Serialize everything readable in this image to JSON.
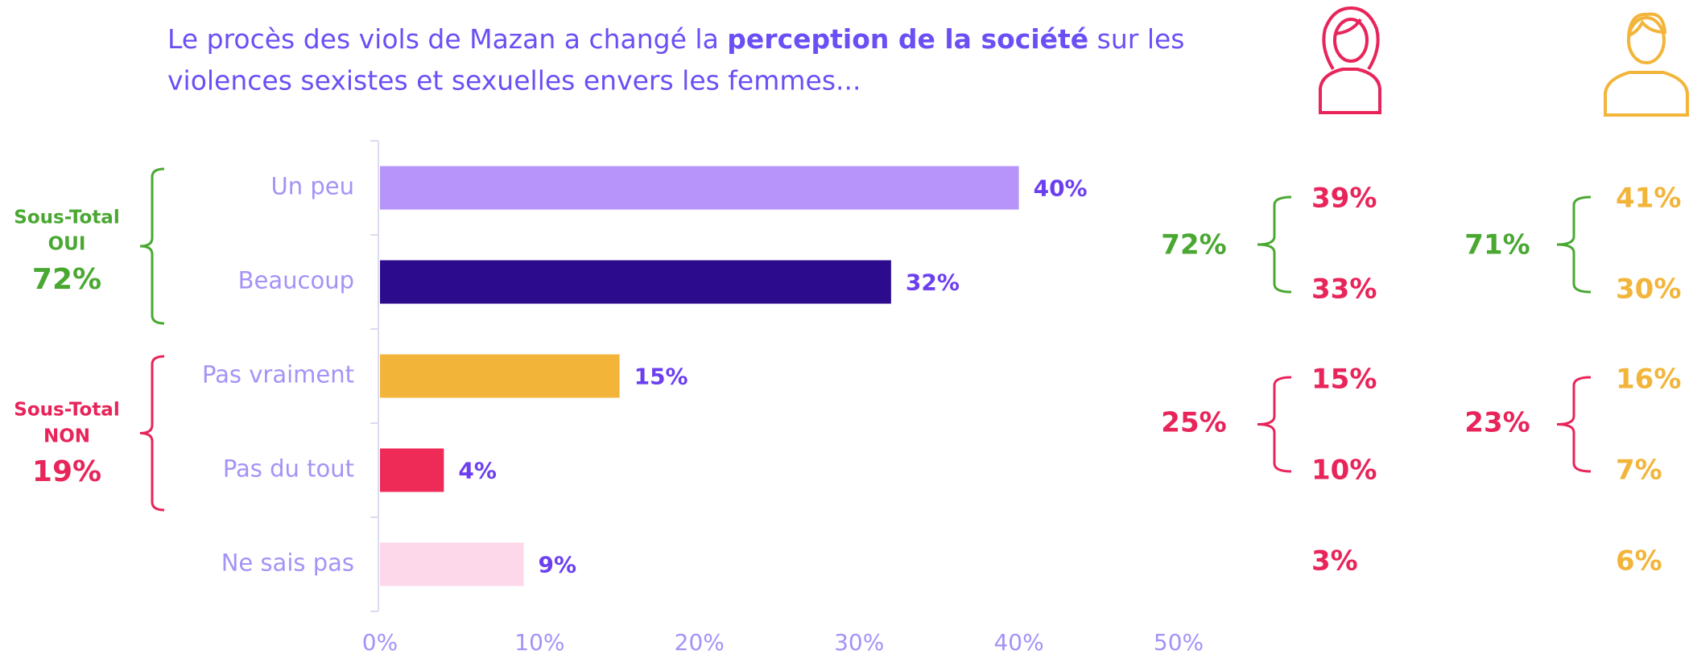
{
  "chart_data": {
    "type": "bar",
    "orientation": "horizontal",
    "title_parts": [
      "Le procès des viols de Mazan a changé la ",
      "perception de la société",
      " sur les",
      "violences sexistes et sexuelles envers les femmes..."
    ],
    "categories": [
      "Un peu",
      "Beaucoup",
      "Pas vraiment",
      "Pas du tout",
      "Ne sais pas"
    ],
    "values": [
      40,
      32,
      15,
      4,
      9
    ],
    "value_labels": [
      "40%",
      "32%",
      "15%",
      "4%",
      "9%"
    ],
    "colors": [
      "#b794fa",
      "#2c0c8c",
      "#f2b53a",
      "#ee2a57",
      "#fcd8ea"
    ],
    "xlim": [
      0,
      50
    ],
    "xticks": [
      {
        "value": 0,
        "label": "0%"
      },
      {
        "value": 10,
        "label": "10%"
      },
      {
        "value": 20,
        "label": "20%"
      },
      {
        "value": 30,
        "label": "30%"
      },
      {
        "value": 40,
        "label": "40%"
      },
      {
        "value": 50,
        "label": "50%"
      }
    ],
    "subtotals": [
      {
        "lines": [
          "Sous-Total",
          "OUI"
        ],
        "value": 72,
        "value_label": "72%",
        "color": "#4aa832"
      },
      {
        "lines": [
          "Sous-Total",
          "NON"
        ],
        "value": 19,
        "value_label": "19%",
        "color": "#e8245a"
      }
    ],
    "breakdowns": [
      {
        "color": "#e8245a",
        "values": [
          39,
          33,
          15,
          10,
          3
        ],
        "value_labels": [
          "39%",
          "33%",
          "15%",
          "10%",
          "3%"
        ],
        "subtotals": [
          72,
          25
        ],
        "subtotal_labels": [
          "72%",
          "25%"
        ],
        "subtotal_colors": [
          "#4aa832",
          "#e8245a"
        ]
      },
      {
        "color": "#f2b53a",
        "values": [
          41,
          30,
          16,
          7,
          6
        ],
        "value_labels": [
          "41%",
          "30%",
          "16%",
          "7%",
          "6%"
        ],
        "subtotals": [
          71,
          23
        ],
        "subtotal_labels": [
          "71%",
          "23%"
        ],
        "subtotal_colors": [
          "#4aa832",
          "#e8245a"
        ]
      }
    ]
  }
}
